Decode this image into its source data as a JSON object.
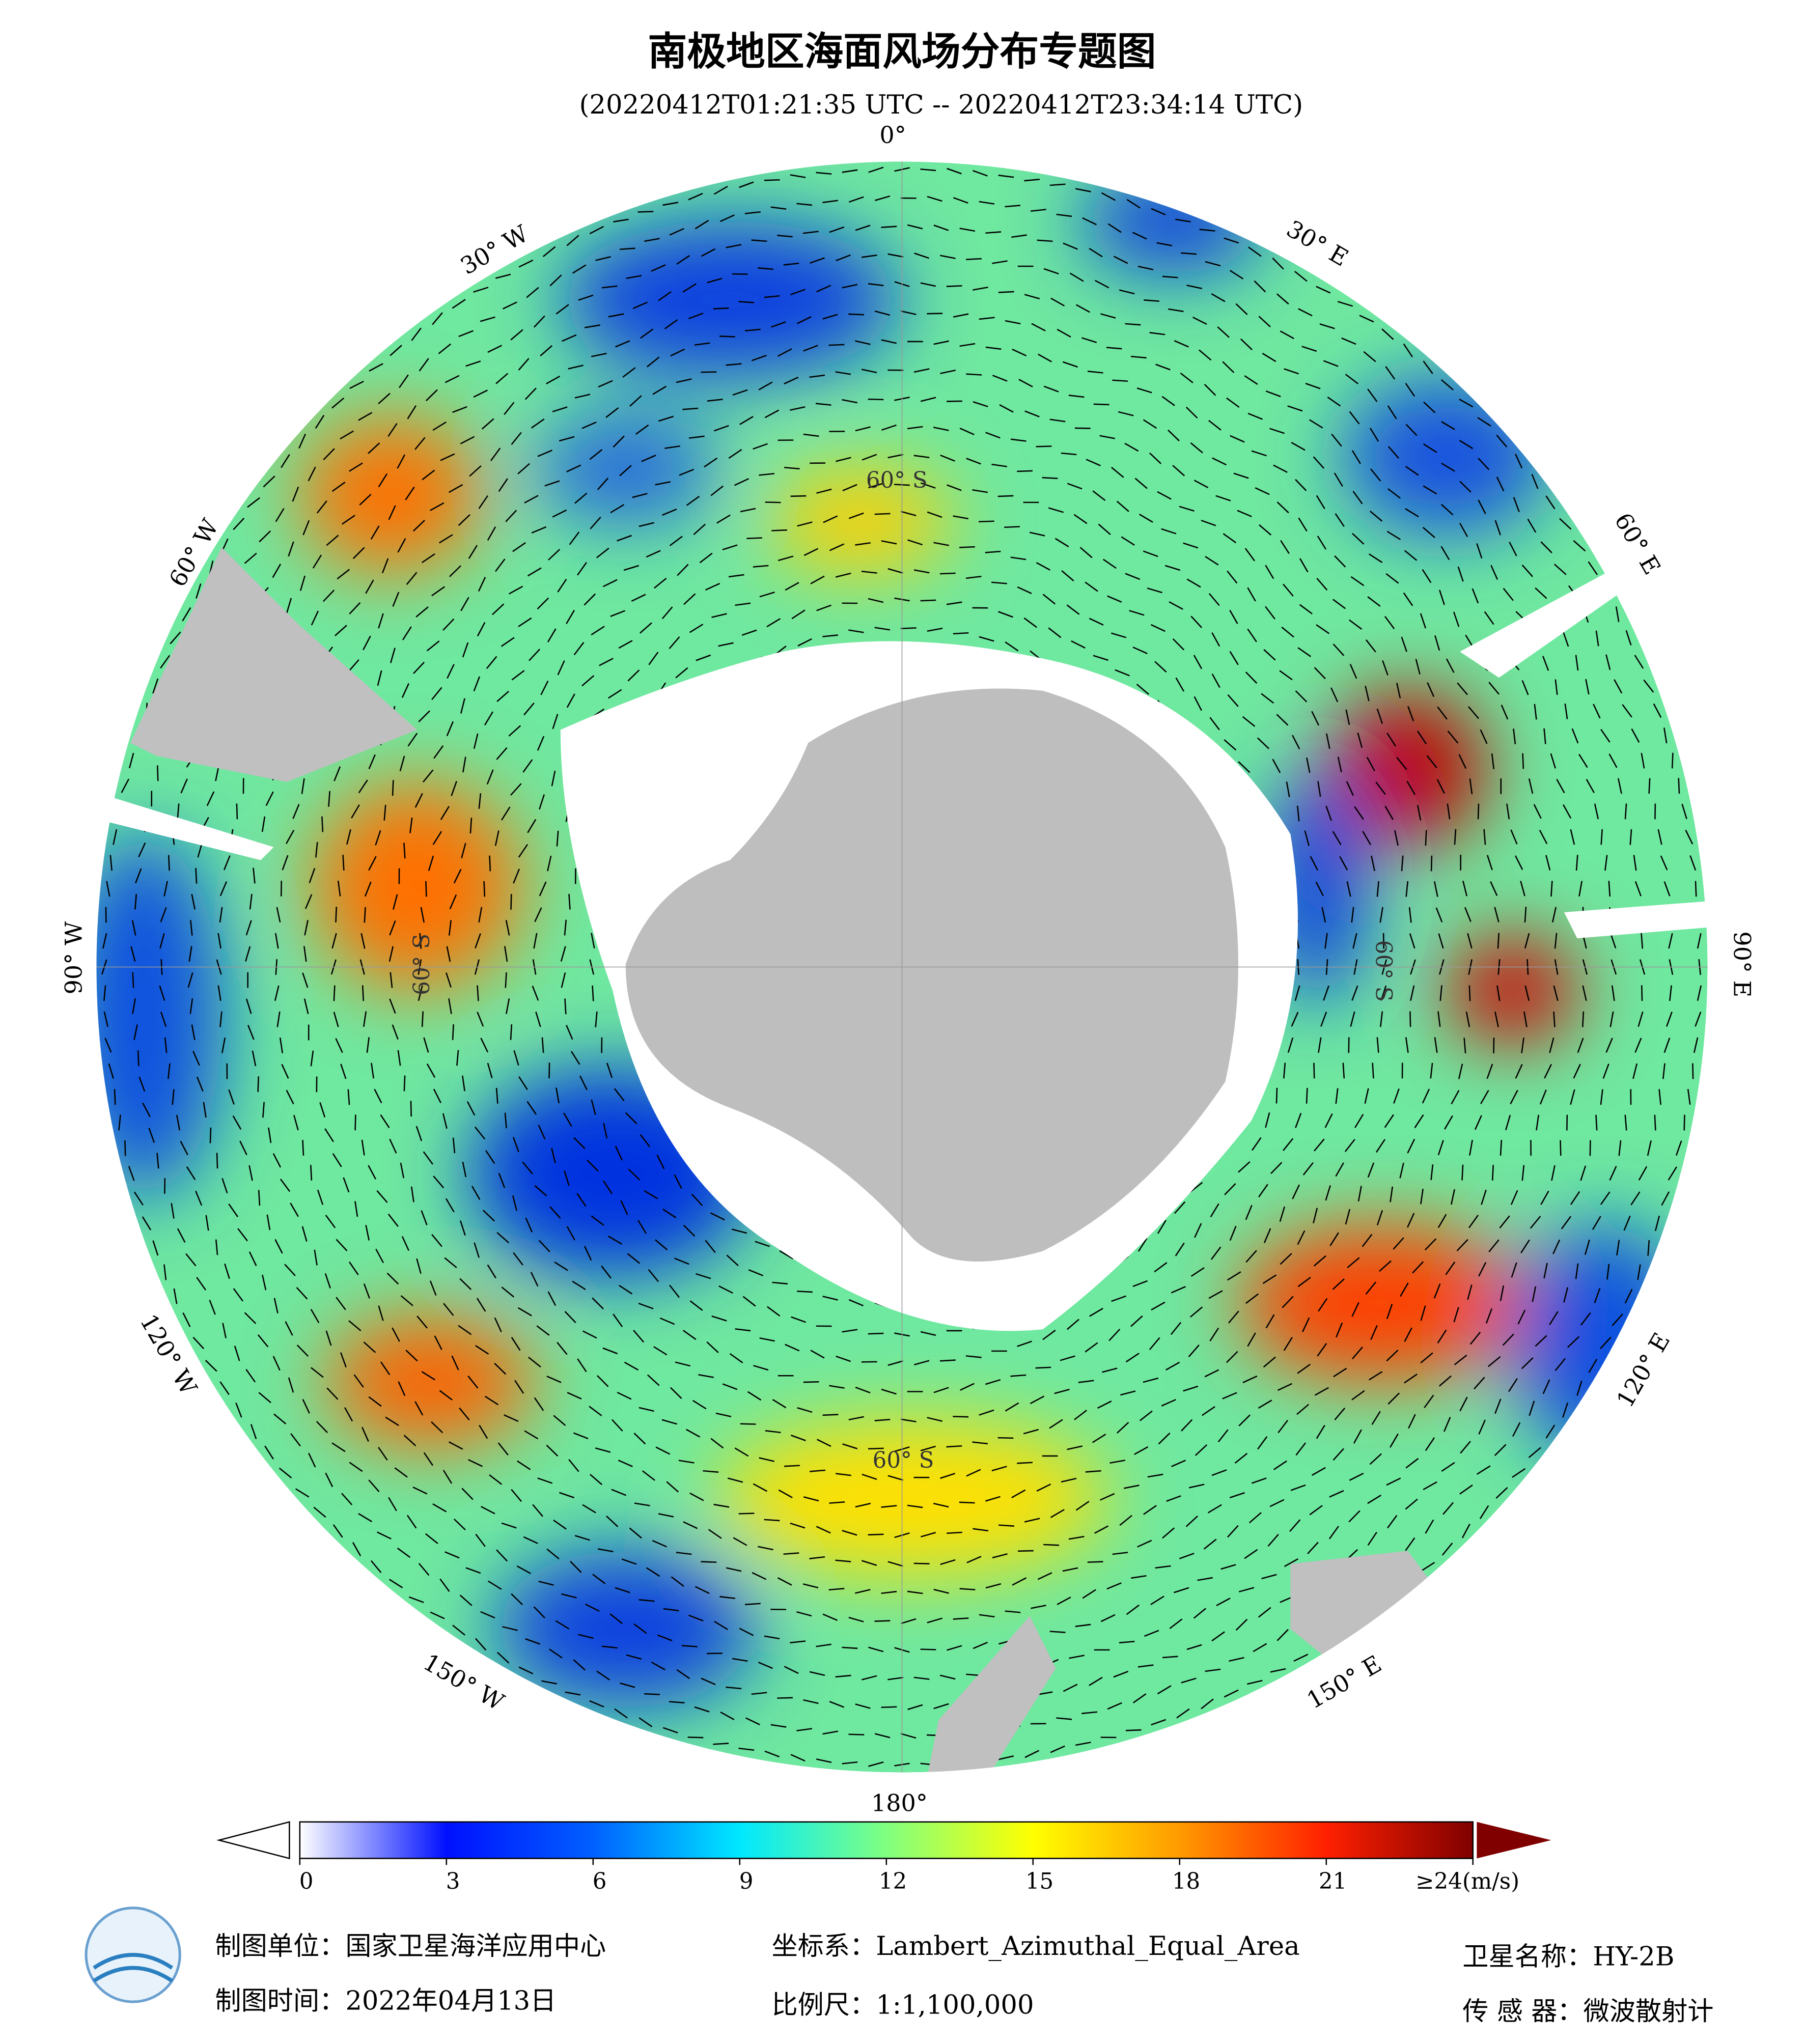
{
  "header": {
    "title": "南极地区海面风场分布专题图",
    "subtitle": "(20220412T01:21:35 UTC -- 20220412T23:34:14 UTC)"
  },
  "map": {
    "longitude_labels": [
      "0°",
      "30° E",
      "60° E",
      "90° E",
      "120° E",
      "150° E",
      "180°",
      "150° W",
      "120° W",
      "90° W",
      "60° W",
      "30° W"
    ],
    "latitude_labels": [
      "60° S",
      "60° S",
      "60° S",
      "60° S"
    ]
  },
  "colorbar": {
    "ticks": [
      0,
      3,
      6,
      9,
      12,
      15,
      18,
      21,
      {
        "value": 24,
        "label": "≥24(m/s)"
      }
    ]
  },
  "footer": {
    "unit": "制图单位：国家卫星海洋应用中心",
    "date": "制图时间：2022年04月13日",
    "projection": "坐标系：Lambert_Azimuthal_Equal_Area",
    "scale": "比例尺：1:1,100,000",
    "satellite": "卫星名称：HY-2B",
    "sensor": "传 感 器：微波散射计"
  }
}
